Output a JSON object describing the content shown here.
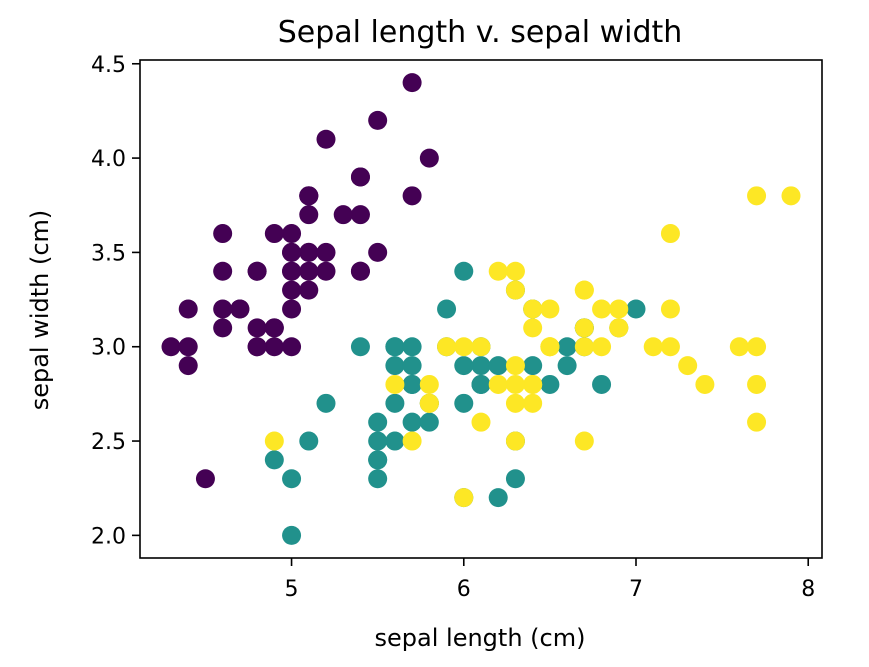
{
  "chart_data": {
    "type": "scatter",
    "title": "Sepal length v. sepal width",
    "xlabel": "sepal length (cm)",
    "ylabel": "sepal width (cm)",
    "xlim": [
      4.12,
      8.08
    ],
    "ylim": [
      1.88,
      4.52
    ],
    "xticks": [
      5,
      6,
      7,
      8
    ],
    "yticks": [
      2.0,
      2.5,
      3.0,
      3.5,
      4.0,
      4.5
    ],
    "xtick_labels": [
      "5",
      "6",
      "7",
      "8"
    ],
    "ytick_labels": [
      "2.0",
      "2.5",
      "3.0",
      "3.5",
      "4.0",
      "4.5"
    ],
    "grid": false,
    "legend": "none",
    "series": [
      {
        "color": "#440154",
        "points": [
          [
            5.1,
            3.5
          ],
          [
            4.9,
            3.0
          ],
          [
            4.7,
            3.2
          ],
          [
            4.6,
            3.1
          ],
          [
            5.0,
            3.6
          ],
          [
            5.4,
            3.9
          ],
          [
            4.6,
            3.4
          ],
          [
            5.0,
            3.4
          ],
          [
            4.4,
            2.9
          ],
          [
            4.9,
            3.1
          ],
          [
            5.4,
            3.7
          ],
          [
            4.8,
            3.4
          ],
          [
            4.8,
            3.0
          ],
          [
            4.3,
            3.0
          ],
          [
            5.8,
            4.0
          ],
          [
            5.7,
            4.4
          ],
          [
            5.4,
            3.9
          ],
          [
            5.1,
            3.5
          ],
          [
            5.7,
            3.8
          ],
          [
            5.1,
            3.8
          ],
          [
            5.4,
            3.4
          ],
          [
            5.1,
            3.7
          ],
          [
            4.6,
            3.6
          ],
          [
            5.1,
            3.3
          ],
          [
            4.8,
            3.4
          ],
          [
            5.0,
            3.0
          ],
          [
            5.0,
            3.4
          ],
          [
            5.2,
            3.5
          ],
          [
            5.2,
            3.4
          ],
          [
            4.7,
            3.2
          ],
          [
            4.8,
            3.1
          ],
          [
            5.4,
            3.4
          ],
          [
            5.2,
            4.1
          ],
          [
            5.5,
            4.2
          ],
          [
            4.9,
            3.1
          ],
          [
            5.0,
            3.2
          ],
          [
            5.5,
            3.5
          ],
          [
            4.9,
            3.6
          ],
          [
            4.4,
            3.0
          ],
          [
            5.1,
            3.4
          ],
          [
            5.0,
            3.5
          ],
          [
            4.5,
            2.3
          ],
          [
            4.4,
            3.2
          ],
          [
            5.0,
            3.5
          ],
          [
            5.1,
            3.8
          ],
          [
            4.8,
            3.0
          ],
          [
            5.1,
            3.8
          ],
          [
            4.6,
            3.2
          ],
          [
            5.3,
            3.7
          ],
          [
            5.0,
            3.3
          ]
        ]
      },
      {
        "color": "#21918c",
        "points": [
          [
            7.0,
            3.2
          ],
          [
            6.4,
            3.2
          ],
          [
            6.9,
            3.1
          ],
          [
            5.5,
            2.3
          ],
          [
            6.5,
            2.8
          ],
          [
            5.7,
            2.8
          ],
          [
            6.3,
            3.3
          ],
          [
            4.9,
            2.4
          ],
          [
            6.6,
            2.9
          ],
          [
            5.2,
            2.7
          ],
          [
            5.0,
            2.0
          ],
          [
            5.9,
            3.0
          ],
          [
            6.0,
            2.2
          ],
          [
            6.1,
            2.9
          ],
          [
            5.6,
            2.9
          ],
          [
            6.7,
            3.1
          ],
          [
            5.6,
            3.0
          ],
          [
            5.8,
            2.7
          ],
          [
            6.2,
            2.2
          ],
          [
            5.6,
            2.5
          ],
          [
            5.9,
            3.2
          ],
          [
            6.1,
            2.8
          ],
          [
            6.3,
            2.5
          ],
          [
            6.1,
            2.8
          ],
          [
            6.4,
            2.9
          ],
          [
            6.6,
            3.0
          ],
          [
            6.8,
            2.8
          ],
          [
            6.7,
            3.0
          ],
          [
            6.0,
            2.9
          ],
          [
            5.7,
            2.6
          ],
          [
            5.5,
            2.4
          ],
          [
            5.5,
            2.4
          ],
          [
            5.8,
            2.7
          ],
          [
            6.0,
            2.7
          ],
          [
            5.4,
            3.0
          ],
          [
            6.0,
            3.4
          ],
          [
            6.7,
            3.1
          ],
          [
            6.3,
            2.3
          ],
          [
            5.6,
            3.0
          ],
          [
            5.5,
            2.5
          ],
          [
            5.5,
            2.6
          ],
          [
            6.1,
            3.0
          ],
          [
            5.8,
            2.6
          ],
          [
            5.0,
            2.3
          ],
          [
            5.6,
            2.7
          ],
          [
            5.7,
            3.0
          ],
          [
            5.7,
            2.9
          ],
          [
            6.2,
            2.9
          ],
          [
            5.1,
            2.5
          ],
          [
            5.7,
            2.8
          ]
        ]
      },
      {
        "color": "#fde725",
        "points": [
          [
            6.3,
            3.3
          ],
          [
            5.8,
            2.7
          ],
          [
            7.1,
            3.0
          ],
          [
            6.3,
            2.9
          ],
          [
            6.5,
            3.0
          ],
          [
            7.6,
            3.0
          ],
          [
            4.9,
            2.5
          ],
          [
            7.3,
            2.9
          ],
          [
            6.7,
            2.5
          ],
          [
            7.2,
            3.6
          ],
          [
            6.5,
            3.2
          ],
          [
            6.4,
            2.7
          ],
          [
            6.8,
            3.0
          ],
          [
            5.7,
            2.5
          ],
          [
            5.8,
            2.8
          ],
          [
            6.4,
            3.2
          ],
          [
            6.5,
            3.0
          ],
          [
            7.7,
            3.8
          ],
          [
            7.7,
            2.6
          ],
          [
            6.0,
            2.2
          ],
          [
            6.9,
            3.2
          ],
          [
            5.6,
            2.8
          ],
          [
            7.7,
            2.8
          ],
          [
            6.3,
            2.7
          ],
          [
            6.7,
            3.3
          ],
          [
            7.2,
            3.2
          ],
          [
            6.2,
            2.8
          ],
          [
            6.1,
            3.0
          ],
          [
            6.4,
            2.8
          ],
          [
            7.2,
            3.0
          ],
          [
            7.4,
            2.8
          ],
          [
            7.9,
            3.8
          ],
          [
            6.4,
            2.8
          ],
          [
            6.3,
            2.8
          ],
          [
            6.1,
            2.6
          ],
          [
            7.7,
            3.0
          ],
          [
            6.3,
            3.4
          ],
          [
            6.4,
            3.1
          ],
          [
            6.0,
            3.0
          ],
          [
            6.9,
            3.1
          ],
          [
            6.7,
            3.1
          ],
          [
            6.9,
            3.1
          ],
          [
            5.8,
            2.7
          ],
          [
            6.8,
            3.2
          ],
          [
            6.7,
            3.3
          ],
          [
            6.7,
            3.0
          ],
          [
            6.3,
            2.5
          ],
          [
            6.5,
            3.0
          ],
          [
            6.2,
            3.4
          ],
          [
            5.9,
            3.0
          ]
        ]
      }
    ]
  }
}
